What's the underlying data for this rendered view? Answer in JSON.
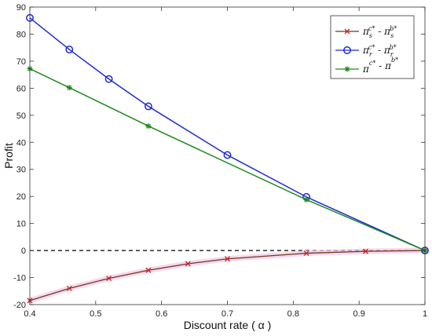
{
  "chart_data": {
    "type": "line",
    "xlabel": "Discount rate ( α )",
    "ylabel": "Profit",
    "xlim": [
      0.4,
      1.0
    ],
    "ylim": [
      -20,
      90
    ],
    "xticks": [
      "0.4",
      "0.5",
      "0.6",
      "0.7",
      "0.8",
      "0.9",
      "1"
    ],
    "yticks": [
      "-20",
      "-10",
      "0",
      "10",
      "20",
      "30",
      "40",
      "50",
      "60",
      "70",
      "80",
      "90"
    ],
    "grid": false,
    "legend_position": "top-right",
    "reference_line": {
      "y": 0,
      "style": "dashed",
      "color": "#000000"
    },
    "series": [
      {
        "name": "π_s^{c*} - π_s^{b*}",
        "legend": {
          "main1": "π",
          "sub1": "s",
          "sup1": "c*",
          "minus": " - ",
          "main2": "π",
          "sub2": "s",
          "sup2": "b*"
        },
        "color": "#cc2222",
        "marker": "x",
        "x": [
          0.4,
          0.46,
          0.52,
          0.58,
          0.64,
          0.7,
          0.82,
          0.91,
          1.0
        ],
        "y": [
          -18.5,
          -14.0,
          -10.3,
          -7.3,
          -4.9,
          -3.1,
          -1.0,
          -0.3,
          0.0
        ]
      },
      {
        "name": "π_r^{c*} - π_r^{b*}",
        "legend": {
          "main1": "π",
          "sub1": "r",
          "sup1": "c*",
          "minus": " - ",
          "main2": "π",
          "sub2": "r",
          "sup2": "b*"
        },
        "color": "#1f2ad6",
        "marker": "o",
        "x": [
          0.4,
          0.46,
          0.52,
          0.58,
          0.7,
          0.82,
          1.0
        ],
        "y": [
          86.0,
          74.3,
          63.4,
          53.3,
          35.3,
          19.8,
          0.0
        ]
      },
      {
        "name": "π^{c*} - π^{b*}",
        "legend": {
          "main1": "π",
          "sub1": "",
          "sup1": "c*",
          "minus": " - ",
          "main2": "π",
          "sub2": "",
          "sup2": "b*"
        },
        "color": "#1e8a1e",
        "marker": "*",
        "x": [
          0.4,
          0.46,
          0.58,
          0.82,
          1.0
        ],
        "y": [
          67.2,
          60.2,
          46.0,
          18.8,
          0.0
        ]
      }
    ]
  }
}
